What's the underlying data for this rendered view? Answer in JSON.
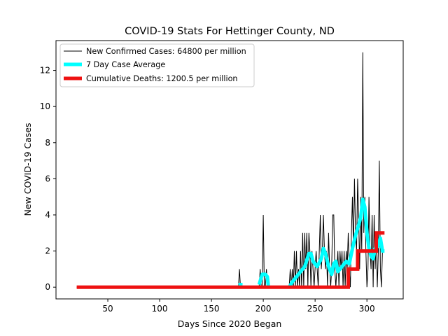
{
  "chart_data": {
    "type": "line",
    "title": "COVID-19 Stats For Hettinger County, ND",
    "xlabel": "Days Since 2020 Began",
    "ylabel": "New COVID-19 Cases",
    "xlim": [
      0,
      335
    ],
    "ylim": [
      -0.65,
      13.65
    ],
    "x_ticks": [
      50,
      100,
      150,
      200,
      250,
      300
    ],
    "y_ticks": [
      0,
      2,
      4,
      6,
      8,
      10,
      12
    ],
    "grid": false,
    "legend_position": "top-left",
    "series": [
      {
        "name": "New Confirmed Cases: 64800 per million",
        "color": "#000000",
        "style": "thin",
        "points": [
          [
            20,
            0
          ],
          [
            176,
            0
          ],
          [
            177,
            1
          ],
          [
            178,
            0
          ],
          [
            196,
            0
          ],
          [
            197,
            1
          ],
          [
            198,
            0
          ],
          [
            199,
            0
          ],
          [
            200,
            4
          ],
          [
            201,
            0
          ],
          [
            202,
            0
          ],
          [
            203,
            1
          ],
          [
            204,
            0
          ],
          [
            225,
            0
          ],
          [
            226,
            1
          ],
          [
            227,
            0
          ],
          [
            228,
            1
          ],
          [
            229,
            0
          ],
          [
            230,
            2
          ],
          [
            231,
            0
          ],
          [
            232,
            2
          ],
          [
            233,
            0
          ],
          [
            234,
            1
          ],
          [
            235,
            0
          ],
          [
            236,
            2
          ],
          [
            237,
            0
          ],
          [
            238,
            3
          ],
          [
            239,
            0
          ],
          [
            240,
            3
          ],
          [
            241,
            1
          ],
          [
            242,
            3
          ],
          [
            243,
            0
          ],
          [
            244,
            3
          ],
          [
            245,
            2
          ],
          [
            246,
            0
          ],
          [
            247,
            2
          ],
          [
            248,
            1
          ],
          [
            249,
            0
          ],
          [
            250,
            1
          ],
          [
            251,
            2
          ],
          [
            252,
            1
          ],
          [
            253,
            0
          ],
          [
            254,
            2
          ],
          [
            255,
            4
          ],
          [
            256,
            1
          ],
          [
            257,
            2
          ],
          [
            258,
            4
          ],
          [
            259,
            2
          ],
          [
            260,
            1
          ],
          [
            261,
            2
          ],
          [
            262,
            0
          ],
          [
            263,
            3
          ],
          [
            264,
            1
          ],
          [
            265,
            0
          ],
          [
            266,
            1
          ],
          [
            267,
            4
          ],
          [
            268,
            4
          ],
          [
            269,
            1
          ],
          [
            270,
            0
          ],
          [
            271,
            1
          ],
          [
            272,
            2
          ],
          [
            273,
            0
          ],
          [
            274,
            2
          ],
          [
            275,
            1
          ],
          [
            276,
            2
          ],
          [
            277,
            0
          ],
          [
            278,
            2
          ],
          [
            279,
            0
          ],
          [
            280,
            2
          ],
          [
            281,
            1
          ],
          [
            282,
            3
          ],
          [
            283,
            1
          ],
          [
            284,
            0
          ],
          [
            285,
            3
          ],
          [
            286,
            5
          ],
          [
            287,
            2
          ],
          [
            288,
            6
          ],
          [
            289,
            3
          ],
          [
            290,
            2
          ],
          [
            291,
            6
          ],
          [
            292,
            4
          ],
          [
            293,
            1
          ],
          [
            294,
            5
          ],
          [
            295,
            2
          ],
          [
            296,
            13
          ],
          [
            297,
            3
          ],
          [
            298,
            5
          ],
          [
            299,
            2
          ],
          [
            300,
            0
          ],
          [
            301,
            1
          ],
          [
            302,
            5
          ],
          [
            303,
            2
          ],
          [
            304,
            1
          ],
          [
            305,
            4
          ],
          [
            306,
            0
          ],
          [
            307,
            4
          ],
          [
            308,
            1
          ],
          [
            309,
            3
          ],
          [
            310,
            0
          ],
          [
            311,
            2
          ],
          [
            312,
            7
          ],
          [
            313,
            1
          ],
          [
            314,
            0
          ],
          [
            315,
            2
          ],
          [
            316,
            2
          ]
        ]
      },
      {
        "name": "7 Day Case Average",
        "color": "#00ffff",
        "style": "thick",
        "segments": [
          [
            [
              176,
              0.14
            ],
            [
              180,
              0.14
            ]
          ],
          [
            [
              196,
              0.14
            ],
            [
              199,
              0.71
            ],
            [
              202,
              0.71
            ],
            [
              204,
              0.57
            ],
            [
              205,
              0.0
            ]
          ],
          [
            [
              225,
              0.0
            ],
            [
              228,
              0.29
            ],
            [
              232,
              0.57
            ],
            [
              236,
              0.86
            ],
            [
              240,
              1.14
            ],
            [
              244,
              1.86
            ],
            [
              246,
              1.86
            ],
            [
              248,
              1.43
            ],
            [
              252,
              1.14
            ],
            [
              256,
              1.57
            ],
            [
              258,
              2.14
            ],
            [
              260,
              1.86
            ],
            [
              263,
              1.14
            ],
            [
              266,
              0.71
            ],
            [
              268,
              1.29
            ],
            [
              270,
              1.43
            ],
            [
              272,
              0.86
            ],
            [
              276,
              1.14
            ],
            [
              280,
              1.43
            ],
            [
              283,
              1.29
            ],
            [
              286,
              2.14
            ],
            [
              289,
              2.86
            ],
            [
              292,
              3.43
            ],
            [
              294,
              3.86
            ],
            [
              296,
              4.86
            ],
            [
              298,
              4.43
            ],
            [
              300,
              3.0
            ],
            [
              302,
              2.14
            ],
            [
              304,
              1.71
            ],
            [
              306,
              1.57
            ],
            [
              308,
              2.14
            ],
            [
              311,
              2.29
            ],
            [
              313,
              2.71
            ],
            [
              315,
              2.0
            ],
            [
              317,
              2.0
            ]
          ]
        ]
      },
      {
        "name": "Cumulative Deaths: 1200.5 per million",
        "color": "#ee1111",
        "style": "thick",
        "points": [
          [
            20,
            0
          ],
          [
            282,
            0
          ],
          [
            282,
            1
          ],
          [
            291,
            1
          ],
          [
            291,
            2
          ],
          [
            309,
            2
          ],
          [
            309,
            3
          ],
          [
            317,
            3
          ]
        ]
      }
    ]
  }
}
